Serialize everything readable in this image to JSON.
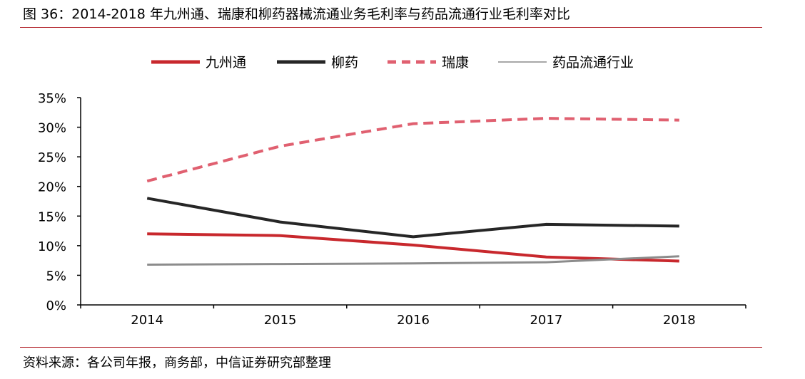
{
  "figure": {
    "title": "图 36：2014-2018 年九州通、瑞康和柳药器械流通业务毛利率与药品流通行业毛利率对比",
    "source": "资料来源：各公司年报，商务部，中信证券研究部整理"
  },
  "chart_data": {
    "type": "line",
    "x": [
      "2014",
      "2015",
      "2016",
      "2017",
      "2018"
    ],
    "ylim": [
      0,
      35
    ],
    "yticks": [
      "0%",
      "5%",
      "10%",
      "15%",
      "20%",
      "25%",
      "30%",
      "35%"
    ],
    "ytick_values": [
      0,
      5,
      10,
      15,
      20,
      25,
      30,
      35
    ],
    "legend_position": "top",
    "grid": false,
    "series": [
      {
        "name": "九州通",
        "color": "#c8282d",
        "dash": "solid",
        "width": "bold",
        "values": [
          12.0,
          11.7,
          10.1,
          8.1,
          7.4
        ]
      },
      {
        "name": "柳药",
        "color": "#262626",
        "dash": "solid",
        "width": "bold",
        "values": [
          18.0,
          14.0,
          11.5,
          13.6,
          13.3
        ]
      },
      {
        "name": "瑞康",
        "color": "#e06070",
        "dash": "dashed",
        "width": "bold",
        "values": [
          20.9,
          26.8,
          30.6,
          31.5,
          31.2
        ]
      },
      {
        "name": "药品流通行业",
        "color": "#8c8c8c",
        "dash": "solid",
        "width": "bold",
        "values": [
          6.8,
          6.9,
          7.0,
          7.2,
          8.2
        ]
      }
    ]
  }
}
